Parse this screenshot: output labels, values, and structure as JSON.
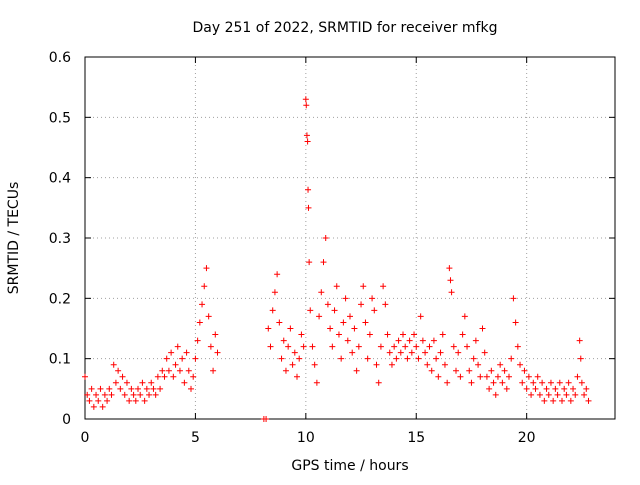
{
  "chart_data": {
    "type": "scatter",
    "title": "Day 251 of 2022, SRMTID for receiver mfkg",
    "xlabel": "GPS time / hours",
    "ylabel": "SRMTID / TECUs",
    "xlim": [
      0,
      24
    ],
    "ylim": [
      0,
      0.6
    ],
    "xticks": [
      0,
      5,
      10,
      15,
      20
    ],
    "xtick_labels": [
      "0",
      "5",
      "10",
      "15",
      "20"
    ],
    "yticks": [
      0,
      0.1,
      0.2,
      0.3,
      0.4,
      0.5,
      0.6
    ],
    "ytick_labels": [
      "0",
      "0.1",
      "0.2",
      "0.3",
      "0.4",
      "0.5",
      "0.6"
    ],
    "grid": true,
    "marker": "plus",
    "series": [
      {
        "name": "SRMTID",
        "color": "#ff0000",
        "points": [
          [
            0.0,
            0.07
          ],
          [
            0.1,
            0.04
          ],
          [
            0.2,
            0.03
          ],
          [
            0.3,
            0.05
          ],
          [
            0.4,
            0.02
          ],
          [
            0.5,
            0.04
          ],
          [
            0.6,
            0.03
          ],
          [
            0.7,
            0.05
          ],
          [
            0.8,
            0.02
          ],
          [
            0.9,
            0.04
          ],
          [
            1.0,
            0.03
          ],
          [
            1.1,
            0.05
          ],
          [
            1.2,
            0.04
          ],
          [
            1.3,
            0.09
          ],
          [
            1.4,
            0.06
          ],
          [
            1.5,
            0.08
          ],
          [
            1.6,
            0.05
          ],
          [
            1.7,
            0.07
          ],
          [
            1.8,
            0.04
          ],
          [
            1.9,
            0.06
          ],
          [
            2.0,
            0.03
          ],
          [
            2.1,
            0.05
          ],
          [
            2.2,
            0.04
          ],
          [
            2.3,
            0.03
          ],
          [
            2.4,
            0.05
          ],
          [
            2.5,
            0.04
          ],
          [
            2.6,
            0.06
          ],
          [
            2.7,
            0.03
          ],
          [
            2.8,
            0.05
          ],
          [
            2.9,
            0.04
          ],
          [
            3.0,
            0.06
          ],
          [
            3.1,
            0.05
          ],
          [
            3.2,
            0.04
          ],
          [
            3.3,
            0.07
          ],
          [
            3.4,
            0.05
          ],
          [
            3.5,
            0.08
          ],
          [
            3.6,
            0.07
          ],
          [
            3.7,
            0.1
          ],
          [
            3.8,
            0.08
          ],
          [
            3.9,
            0.11
          ],
          [
            4.0,
            0.07
          ],
          [
            4.1,
            0.09
          ],
          [
            4.2,
            0.12
          ],
          [
            4.3,
            0.08
          ],
          [
            4.4,
            0.1
          ],
          [
            4.5,
            0.06
          ],
          [
            4.6,
            0.11
          ],
          [
            4.7,
            0.08
          ],
          [
            4.8,
            0.05
          ],
          [
            4.9,
            0.07
          ],
          [
            5.0,
            0.1
          ],
          [
            5.1,
            0.13
          ],
          [
            5.2,
            0.16
          ],
          [
            5.3,
            0.19
          ],
          [
            5.4,
            0.22
          ],
          [
            5.5,
            0.25
          ],
          [
            5.6,
            0.17
          ],
          [
            5.7,
            0.12
          ],
          [
            5.8,
            0.08
          ],
          [
            5.9,
            0.14
          ],
          [
            6.0,
            0.11
          ],
          [
            8.1,
            0.0
          ],
          [
            8.2,
            0.0
          ],
          [
            8.3,
            0.15
          ],
          [
            8.4,
            0.12
          ],
          [
            8.5,
            0.18
          ],
          [
            8.6,
            0.21
          ],
          [
            8.7,
            0.24
          ],
          [
            8.8,
            0.16
          ],
          [
            8.9,
            0.1
          ],
          [
            9.0,
            0.13
          ],
          [
            9.1,
            0.08
          ],
          [
            9.2,
            0.12
          ],
          [
            9.3,
            0.15
          ],
          [
            9.4,
            0.09
          ],
          [
            9.5,
            0.11
          ],
          [
            9.6,
            0.07
          ],
          [
            9.7,
            0.1
          ],
          [
            9.8,
            0.14
          ],
          [
            9.9,
            0.12
          ],
          [
            10.0,
            0.53
          ],
          [
            10.02,
            0.52
          ],
          [
            10.05,
            0.47
          ],
          [
            10.08,
            0.46
          ],
          [
            10.1,
            0.38
          ],
          [
            10.12,
            0.35
          ],
          [
            10.15,
            0.26
          ],
          [
            10.2,
            0.18
          ],
          [
            10.3,
            0.12
          ],
          [
            10.4,
            0.09
          ],
          [
            10.5,
            0.06
          ],
          [
            10.6,
            0.17
          ],
          [
            10.7,
            0.21
          ],
          [
            10.8,
            0.26
          ],
          [
            10.9,
            0.3
          ],
          [
            11.0,
            0.19
          ],
          [
            11.1,
            0.15
          ],
          [
            11.2,
            0.12
          ],
          [
            11.3,
            0.18
          ],
          [
            11.4,
            0.22
          ],
          [
            11.5,
            0.14
          ],
          [
            11.6,
            0.1
          ],
          [
            11.7,
            0.16
          ],
          [
            11.8,
            0.2
          ],
          [
            11.9,
            0.13
          ],
          [
            12.0,
            0.17
          ],
          [
            12.1,
            0.11
          ],
          [
            12.2,
            0.15
          ],
          [
            12.3,
            0.08
          ],
          [
            12.4,
            0.12
          ],
          [
            12.5,
            0.19
          ],
          [
            12.6,
            0.22
          ],
          [
            12.7,
            0.16
          ],
          [
            12.8,
            0.1
          ],
          [
            12.9,
            0.14
          ],
          [
            13.0,
            0.2
          ],
          [
            13.1,
            0.18
          ],
          [
            13.2,
            0.09
          ],
          [
            13.3,
            0.06
          ],
          [
            13.4,
            0.12
          ],
          [
            13.5,
            0.22
          ],
          [
            13.6,
            0.19
          ],
          [
            13.7,
            0.14
          ],
          [
            13.8,
            0.11
          ],
          [
            13.9,
            0.09
          ],
          [
            14.0,
            0.12
          ],
          [
            14.1,
            0.1
          ],
          [
            14.2,
            0.13
          ],
          [
            14.3,
            0.11
          ],
          [
            14.4,
            0.14
          ],
          [
            14.5,
            0.12
          ],
          [
            14.6,
            0.1
          ],
          [
            14.7,
            0.13
          ],
          [
            14.8,
            0.11
          ],
          [
            14.9,
            0.14
          ],
          [
            15.0,
            0.12
          ],
          [
            15.1,
            0.1
          ],
          [
            15.2,
            0.17
          ],
          [
            15.3,
            0.13
          ],
          [
            15.4,
            0.11
          ],
          [
            15.5,
            0.09
          ],
          [
            15.6,
            0.12
          ],
          [
            15.7,
            0.08
          ],
          [
            15.8,
            0.13
          ],
          [
            15.9,
            0.1
          ],
          [
            16.0,
            0.07
          ],
          [
            16.1,
            0.11
          ],
          [
            16.2,
            0.14
          ],
          [
            16.3,
            0.09
          ],
          [
            16.4,
            0.06
          ],
          [
            16.5,
            0.25
          ],
          [
            16.55,
            0.23
          ],
          [
            16.6,
            0.21
          ],
          [
            16.7,
            0.12
          ],
          [
            16.8,
            0.08
          ],
          [
            16.9,
            0.11
          ],
          [
            17.0,
            0.07
          ],
          [
            17.1,
            0.14
          ],
          [
            17.2,
            0.17
          ],
          [
            17.3,
            0.12
          ],
          [
            17.4,
            0.08
          ],
          [
            17.5,
            0.06
          ],
          [
            17.6,
            0.1
          ],
          [
            17.7,
            0.13
          ],
          [
            17.8,
            0.09
          ],
          [
            17.9,
            0.07
          ],
          [
            18.0,
            0.15
          ],
          [
            18.1,
            0.11
          ],
          [
            18.2,
            0.07
          ],
          [
            18.3,
            0.05
          ],
          [
            18.4,
            0.08
          ],
          [
            18.5,
            0.06
          ],
          [
            18.6,
            0.04
          ],
          [
            18.7,
            0.07
          ],
          [
            18.8,
            0.09
          ],
          [
            18.9,
            0.06
          ],
          [
            19.0,
            0.08
          ],
          [
            19.1,
            0.05
          ],
          [
            19.2,
            0.07
          ],
          [
            19.3,
            0.1
          ],
          [
            19.4,
            0.2
          ],
          [
            19.5,
            0.16
          ],
          [
            19.6,
            0.12
          ],
          [
            19.7,
            0.09
          ],
          [
            19.8,
            0.06
          ],
          [
            19.9,
            0.08
          ],
          [
            20.0,
            0.05
          ],
          [
            20.1,
            0.07
          ],
          [
            20.2,
            0.04
          ],
          [
            20.3,
            0.06
          ],
          [
            20.4,
            0.05
          ],
          [
            20.5,
            0.07
          ],
          [
            20.6,
            0.04
          ],
          [
            20.7,
            0.06
          ],
          [
            20.8,
            0.03
          ],
          [
            20.9,
            0.05
          ],
          [
            21.0,
            0.04
          ],
          [
            21.1,
            0.06
          ],
          [
            21.2,
            0.03
          ],
          [
            21.3,
            0.05
          ],
          [
            21.4,
            0.04
          ],
          [
            21.5,
            0.06
          ],
          [
            21.6,
            0.03
          ],
          [
            21.7,
            0.05
          ],
          [
            21.8,
            0.04
          ],
          [
            21.9,
            0.06
          ],
          [
            22.0,
            0.03
          ],
          [
            22.1,
            0.05
          ],
          [
            22.2,
            0.04
          ],
          [
            22.3,
            0.07
          ],
          [
            22.4,
            0.13
          ],
          [
            22.45,
            0.1
          ],
          [
            22.5,
            0.06
          ],
          [
            22.6,
            0.04
          ],
          [
            22.7,
            0.05
          ],
          [
            22.8,
            0.03
          ]
        ]
      }
    ]
  }
}
